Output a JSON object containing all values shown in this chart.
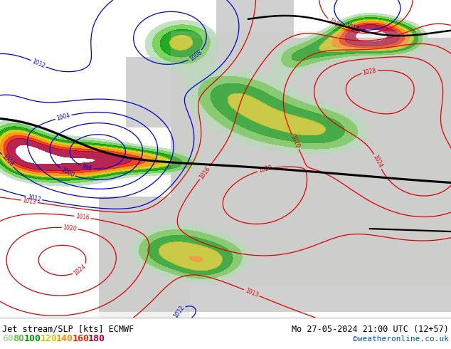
{
  "title_left": "Jet stream/SLP [kts] ECMWF",
  "title_right": "Mo 27-05-2024 21:00 UTC (12+57)",
  "copyright": "©weatheronline.co.uk",
  "legend_values": [
    "60",
    "80",
    "100",
    "120",
    "140",
    "160",
    "180"
  ],
  "legend_colors": [
    "#aaddaa",
    "#66bb44",
    "#009900",
    "#cccc00",
    "#ff8800",
    "#ee2200",
    "#aa0033"
  ],
  "bottom_bar_color": "#ffffff",
  "label_color": "#000000",
  "font_family": "monospace",
  "figsize": [
    6.34,
    4.9
  ],
  "dpi": 100,
  "map_bg_land": "#d8d8d8",
  "map_bg_sea": "#e8e8ee",
  "slp_red_color": "#dd0000",
  "slp_blue_color": "#0000cc",
  "jet_fill_colors": [
    "#b8ddb8",
    "#66cc44",
    "#009900",
    "#cccc00",
    "#ff8800",
    "#ee2200",
    "#aa0033"
  ],
  "jet_fill_levels": [
    60,
    80,
    100,
    120,
    140,
    160,
    180,
    220
  ],
  "copyright_color": "#0055cc"
}
